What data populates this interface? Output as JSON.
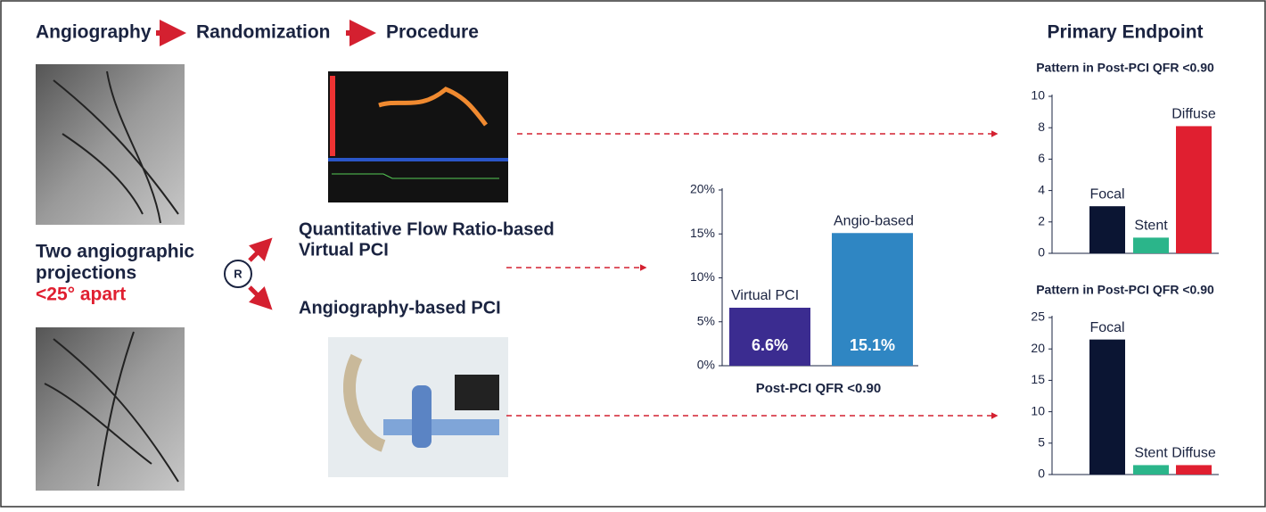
{
  "header": {
    "steps": [
      "Angiography",
      "Randomization",
      "Procedure"
    ],
    "endpoint_title": "Primary Endpoint"
  },
  "projections": {
    "line1": "Two angiographic",
    "line2": "projections",
    "highlight": "<25° apart"
  },
  "randomization": {
    "symbol": "R"
  },
  "arms": [
    {
      "label_lines": [
        "Quantitative Flow Ratio-based",
        "Virtual PCI"
      ]
    },
    {
      "label_lines": [
        "Angiography-based PCI"
      ]
    }
  ],
  "chart_data": [
    {
      "type": "bar",
      "xlabel": "Post-PCI QFR <0.90",
      "categories": [
        "Virtual PCI",
        "Angio-based"
      ],
      "values": [
        6.6,
        15.1
      ],
      "value_labels": [
        "6.6%",
        "15.1%"
      ],
      "colors": [
        "#3b2c90",
        "#2f86c3"
      ],
      "ylim": [
        0,
        20
      ],
      "yticks": [
        {
          "value": 0,
          "label": "0%"
        },
        {
          "value": 5,
          "label": "5%"
        },
        {
          "value": 10,
          "label": "10%"
        },
        {
          "value": 15,
          "label": "15%"
        },
        {
          "value": 20,
          "label": "20%"
        }
      ]
    },
    {
      "type": "bar",
      "title": "Pattern in Post-PCI QFR <0.90",
      "categories": [
        "Focal",
        "Stent",
        "Diffuse"
      ],
      "values": [
        3,
        1,
        8.1
      ],
      "colors": [
        "#0b1533",
        "#2bb58a",
        "#e01f30"
      ],
      "ylim": [
        0,
        10
      ],
      "yticks": [
        0,
        2,
        4,
        6,
        8,
        10
      ]
    },
    {
      "type": "bar",
      "title": "Pattern in Post-PCI QFR <0.90",
      "categories": [
        "Focal",
        "Stent",
        "Diffuse"
      ],
      "values": [
        21.5,
        1.5,
        1.5
      ],
      "colors": [
        "#0b1533",
        "#2bb58a",
        "#e01f30"
      ],
      "ylim": [
        0,
        25
      ],
      "yticks": [
        0,
        5,
        10,
        15,
        20,
        25
      ]
    }
  ]
}
